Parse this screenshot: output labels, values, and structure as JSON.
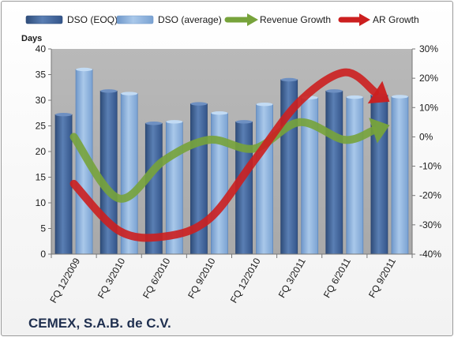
{
  "chart_data": {
    "type": "bar",
    "title": "CEMEX, S.A.B. de C.V.",
    "ylabel": "Days",
    "ylim": [
      0,
      40
    ],
    "y2lim": [
      -0.4,
      0.3
    ],
    "y_ticks": [
      "0",
      "5",
      "10",
      "15",
      "20",
      "25",
      "30",
      "35",
      "40"
    ],
    "y2_ticks": [
      "-40%",
      "-30%",
      "-20%",
      "-10%",
      "0%",
      "10%",
      "20%",
      "30%"
    ],
    "categories": [
      "FQ 12/2009",
      "FQ 3/2010",
      "FQ 6/2010",
      "FQ 9/2010",
      "FQ 12/2010",
      "FQ 3/2011",
      "FQ 6/2011",
      "FQ 9/2011"
    ],
    "series": [
      {
        "name": "DSO (EOQ)",
        "kind": "bar",
        "axis": "left",
        "color": "#4a6fa5",
        "values": [
          27.2,
          31.8,
          25.5,
          29.3,
          25.8,
          34.0,
          31.8,
          31.0
        ]
      },
      {
        "name": "DSO (average)",
        "kind": "bar",
        "axis": "left",
        "color": "#8db4e2",
        "values": [
          36.0,
          31.3,
          25.8,
          27.5,
          29.2,
          30.5,
          30.6,
          30.7
        ]
      },
      {
        "name": "Revenue Growth",
        "kind": "arrow",
        "axis": "right",
        "color": "#77a33b",
        "values": [
          0.0,
          -0.21,
          -0.08,
          -0.01,
          -0.04,
          0.05,
          -0.01,
          0.04
        ]
      },
      {
        "name": "AR Growth",
        "kind": "arrow",
        "axis": "right",
        "color": "#cc1f1f",
        "values": [
          -0.16,
          -0.32,
          -0.34,
          -0.28,
          -0.08,
          0.12,
          0.22,
          0.12
        ]
      }
    ],
    "legend_position": "top",
    "grid": false
  }
}
